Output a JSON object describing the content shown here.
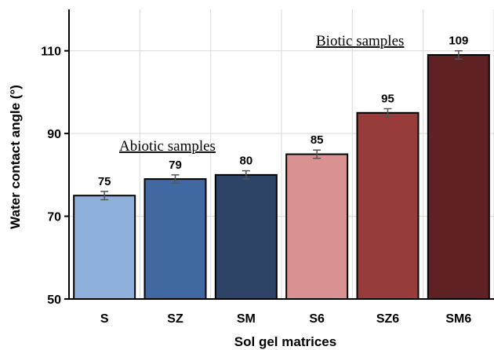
{
  "chart_data": {
    "type": "bar",
    "xlabel": "Sol gel matrices",
    "ylabel": "Water contact angle (°)",
    "categories": [
      "S",
      "SZ",
      "SM",
      "S6",
      "SZ6",
      "SM6"
    ],
    "values": [
      75,
      79,
      80,
      85,
      95,
      109
    ],
    "errors": [
      1,
      1,
      1,
      1,
      1,
      1
    ],
    "data_labels": [
      "75",
      "79",
      "80",
      "85",
      "95",
      "109"
    ],
    "colors": [
      "#8eb0da",
      "#4169a1",
      "#2e4466",
      "#d99291",
      "#973c3a",
      "#5f2123"
    ],
    "ylim": [
      50,
      120
    ],
    "yticks": [
      50,
      70,
      90,
      110
    ],
    "ytick_labels": [
      "50",
      "70",
      "90",
      "110"
    ],
    "grid": true,
    "annotations": [
      {
        "text": "Abiotic samples",
        "underline": true
      },
      {
        "text": "Biotic samples",
        "underline": true
      }
    ]
  }
}
